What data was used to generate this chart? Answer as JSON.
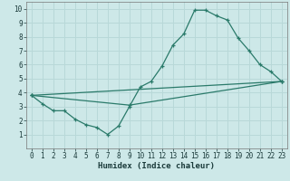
{
  "xlabel": "Humidex (Indice chaleur)",
  "bg_color": "#cde8e8",
  "grid_color": "#b8d8d8",
  "line_color": "#2a7a6a",
  "xlim": [
    -0.5,
    23.5
  ],
  "ylim": [
    0,
    10.5
  ],
  "xticks": [
    0,
    1,
    2,
    3,
    4,
    5,
    6,
    7,
    8,
    9,
    10,
    11,
    12,
    13,
    14,
    15,
    16,
    17,
    18,
    19,
    20,
    21,
    22,
    23
  ],
  "yticks": [
    1,
    2,
    3,
    4,
    5,
    6,
    7,
    8,
    9,
    10
  ],
  "line1_x": [
    0,
    1,
    2,
    3,
    4,
    5,
    6,
    7,
    8,
    9,
    10,
    11,
    12,
    13,
    14,
    15,
    16,
    17,
    18,
    19,
    20,
    21,
    22,
    23
  ],
  "line1_y": [
    3.8,
    3.2,
    2.7,
    2.7,
    2.1,
    1.7,
    1.5,
    1.0,
    1.6,
    3.0,
    4.4,
    4.8,
    5.9,
    7.4,
    8.2,
    9.9,
    9.9,
    9.5,
    9.2,
    7.9,
    7.0,
    6.0,
    5.5,
    4.8
  ],
  "line2_x": [
    0,
    23
  ],
  "line2_y": [
    3.8,
    4.8
  ],
  "line3_x": [
    0,
    9,
    23
  ],
  "line3_y": [
    3.8,
    3.1,
    4.8
  ]
}
